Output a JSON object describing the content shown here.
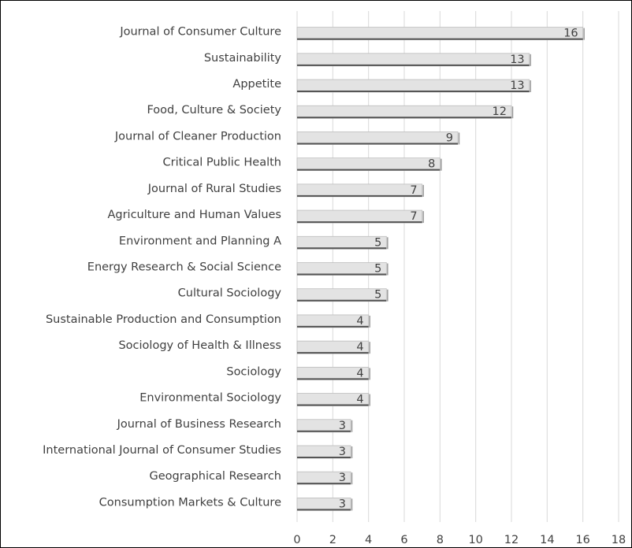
{
  "chart_data": {
    "type": "bar",
    "orientation": "horizontal",
    "categories": [
      "Journal of Consumer Culture",
      "Sustainability",
      "Appetite",
      "Food, Culture & Society",
      "Journal of Cleaner Production",
      "Critical Public Health",
      "Journal of Rural Studies",
      "Agriculture and Human Values",
      "Environment and Planning A",
      "Energy Research & Social Science",
      "Cultural Sociology",
      "Sustainable Production and Consumption",
      "Sociology of Health & Illness",
      "Sociology",
      "Environmental Sociology",
      "Journal of Business Research",
      "International Journal of Consumer Studies",
      "Geographical Research",
      "Consumption Markets & Culture"
    ],
    "values": [
      16,
      13,
      13,
      12,
      9,
      8,
      7,
      7,
      5,
      5,
      5,
      4,
      4,
      4,
      4,
      3,
      3,
      3,
      3
    ],
    "color": "#e3e3e3",
    "xlim": [
      0,
      18
    ],
    "xticks": [
      0,
      2,
      4,
      6,
      8,
      10,
      12,
      14,
      16,
      18
    ],
    "grid": true
  }
}
